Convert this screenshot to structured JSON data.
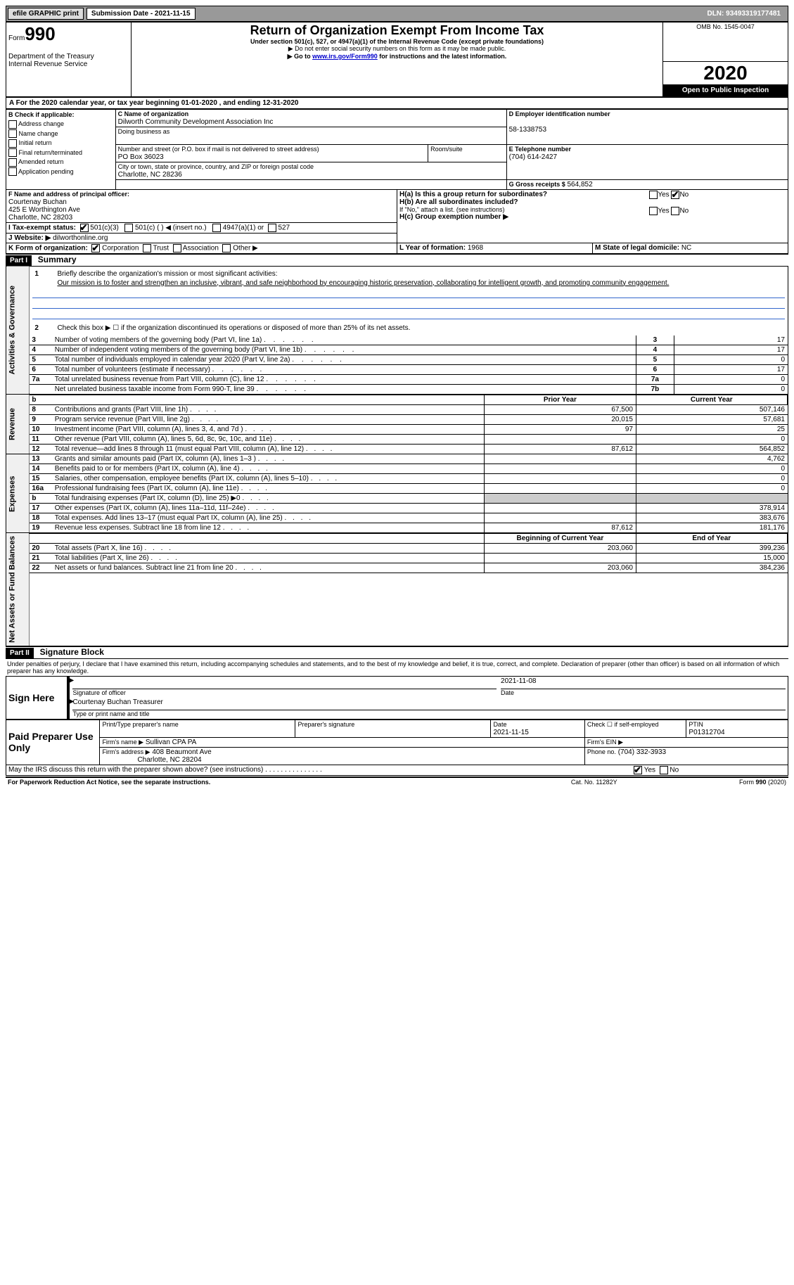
{
  "topbar": {
    "efile": "efile GRAPHIC print",
    "submission_label": "Submission Date - 2021-11-15",
    "dln": "DLN: 93493319177481"
  },
  "header": {
    "form_label": "Form",
    "form_num": "990",
    "dept": "Department of the Treasury\nInternal Revenue Service",
    "title": "Return of Organization Exempt From Income Tax",
    "subtitle": "Under section 501(c), 527, or 4947(a)(1) of the Internal Revenue Code (except private foundations)",
    "note1": "▶ Do not enter social security numbers on this form as it may be made public.",
    "note2_pre": "▶ Go to ",
    "note2_link": "www.irs.gov/Form990",
    "note2_post": " for instructions and the latest information.",
    "omb": "OMB No. 1545-0047",
    "year": "2020",
    "open": "Open to Public Inspection"
  },
  "line_a": "A For the 2020 calendar year, or tax year beginning 01-01-2020    , and ending 12-31-2020",
  "box_b": {
    "label": "B Check if applicable:",
    "items": [
      "Address change",
      "Name change",
      "Initial return",
      "Final return/terminated",
      "Amended return",
      "Application pending"
    ]
  },
  "box_c": {
    "label": "C Name of organization",
    "name": "Dilworth Community Development Association Inc",
    "dba_label": "Doing business as",
    "addr_label": "Number and street (or P.O. box if mail is not delivered to street address)",
    "room_label": "Room/suite",
    "addr": "PO Box 36023",
    "city_label": "City or town, state or province, country, and ZIP or foreign postal code",
    "city": "Charlotte, NC   28236"
  },
  "box_d": {
    "label": "D Employer identification number",
    "value": "58-1338753"
  },
  "box_e": {
    "label": "E Telephone number",
    "value": "(704) 614-2427"
  },
  "box_g": {
    "label": "G Gross receipts $",
    "value": "564,852"
  },
  "box_f": {
    "label": "F  Name and address of principal officer:",
    "name": "Courtenay Buchan",
    "addr1": "425 E Worthington Ave",
    "addr2": "Charlotte, NC  28203"
  },
  "box_h": {
    "ha_label": "H(a)  Is this a group return for subordinates?",
    "hb_label": "H(b)  Are all subordinates included?",
    "hb_note": "If \"No,\" attach a list. (see instructions)",
    "hc_label": "H(c)  Group exemption number ▶",
    "yes": "Yes",
    "no": "No"
  },
  "box_i": {
    "label": "I  Tax-exempt status:",
    "opt1": "501(c)(3)",
    "opt2": "501(c) (  ) ◀ (insert no.)",
    "opt3": "4947(a)(1) or",
    "opt4": "527"
  },
  "box_j": {
    "label": "J  Website: ▶",
    "value": "dilworthonline.org"
  },
  "box_k": {
    "label": "K Form of organization:",
    "opts": [
      "Corporation",
      "Trust",
      "Association",
      "Other ▶"
    ]
  },
  "box_l": {
    "label": "L Year of formation:",
    "value": "1968"
  },
  "box_m": {
    "label": "M State of legal domicile:",
    "value": "NC"
  },
  "part1": {
    "hdr": "Part I",
    "title": "Summary",
    "q1_label": "1",
    "q1_text": "Briefly describe the organization's mission or most significant activities:",
    "q1_mission": "Our mission is to foster and strengthen an inclusive, vibrant, and safe neighborhood by encouraging historic preservation, collaborating for intelligent growth, and promoting community engagement.",
    "q2_label": "2",
    "q2_text": "Check this box ▶ ☐  if the organization discontinued its operations or disposed of more than 25% of its net assets.",
    "sections": {
      "gov": "Activities & Governance",
      "rev": "Revenue",
      "exp": "Expenses",
      "net": "Net Assets or Fund Balances"
    },
    "col_prior": "Prior Year",
    "col_current": "Current Year",
    "col_begin": "Beginning of Current Year",
    "col_end": "End of Year",
    "lines_gov": [
      {
        "n": "3",
        "t": "Number of voting members of the governing body (Part VI, line 1a)",
        "box": "3",
        "v": "17"
      },
      {
        "n": "4",
        "t": "Number of independent voting members of the governing body (Part VI, line 1b)",
        "box": "4",
        "v": "17"
      },
      {
        "n": "5",
        "t": "Total number of individuals employed in calendar year 2020 (Part V, line 2a)",
        "box": "5",
        "v": "0"
      },
      {
        "n": "6",
        "t": "Total number of volunteers (estimate if necessary)",
        "box": "6",
        "v": "17"
      },
      {
        "n": "7a",
        "t": "Total unrelated business revenue from Part VIII, column (C), line 12",
        "box": "7a",
        "v": "0"
      },
      {
        "n": "",
        "t": "Net unrelated business taxable income from Form 990-T, line 39",
        "box": "7b",
        "v": "0"
      }
    ],
    "lines_rev": [
      {
        "n": "8",
        "t": "Contributions and grants (Part VIII, line 1h)",
        "p": "67,500",
        "c": "507,146"
      },
      {
        "n": "9",
        "t": "Program service revenue (Part VIII, line 2g)",
        "p": "20,015",
        "c": "57,681"
      },
      {
        "n": "10",
        "t": "Investment income (Part VIII, column (A), lines 3, 4, and 7d )",
        "p": "97",
        "c": "25"
      },
      {
        "n": "11",
        "t": "Other revenue (Part VIII, column (A), lines 5, 6d, 8c, 9c, 10c, and 11e)",
        "p": "",
        "c": "0"
      },
      {
        "n": "12",
        "t": "Total revenue—add lines 8 through 11 (must equal Part VIII, column (A), line 12)",
        "p": "87,612",
        "c": "564,852"
      }
    ],
    "lines_exp": [
      {
        "n": "13",
        "t": "Grants and similar amounts paid (Part IX, column (A), lines 1–3 )",
        "p": "",
        "c": "4,762"
      },
      {
        "n": "14",
        "t": "Benefits paid to or for members (Part IX, column (A), line 4)",
        "p": "",
        "c": "0"
      },
      {
        "n": "15",
        "t": "Salaries, other compensation, employee benefits (Part IX, column (A), lines 5–10)",
        "p": "",
        "c": "0"
      },
      {
        "n": "16a",
        "t": "Professional fundraising fees (Part IX, column (A), line 11e)",
        "p": "",
        "c": "0"
      },
      {
        "n": "b",
        "t": "Total fundraising expenses (Part IX, column (D), line 25) ▶0",
        "p": "grey",
        "c": "grey"
      },
      {
        "n": "17",
        "t": "Other expenses (Part IX, column (A), lines 11a–11d, 11f–24e)",
        "p": "",
        "c": "378,914"
      },
      {
        "n": "18",
        "t": "Total expenses. Add lines 13–17 (must equal Part IX, column (A), line 25)",
        "p": "",
        "c": "383,676"
      },
      {
        "n": "19",
        "t": "Revenue less expenses. Subtract line 18 from line 12",
        "p": "87,612",
        "c": "181,176"
      }
    ],
    "lines_net": [
      {
        "n": "20",
        "t": "Total assets (Part X, line 16)",
        "p": "203,060",
        "c": "399,236"
      },
      {
        "n": "21",
        "t": "Total liabilities (Part X, line 26)",
        "p": "",
        "c": "15,000"
      },
      {
        "n": "22",
        "t": "Net assets or fund balances. Subtract line 21 from line 20",
        "p": "203,060",
        "c": "384,236"
      }
    ]
  },
  "part2": {
    "hdr": "Part II",
    "title": "Signature Block",
    "decl": "Under penalties of perjury, I declare that I have examined this return, including accompanying schedules and statements, and to the best of my knowledge and belief, it is true, correct, and complete. Declaration of preparer (other than officer) is based on all information of which preparer has any knowledge.",
    "sign_here": "Sign Here",
    "sig_officer": "Signature of officer",
    "sig_date": "2021-11-08",
    "date_label": "Date",
    "officer_name": "Courtenay Buchan  Treasurer",
    "type_name": "Type or print name and title",
    "paid": "Paid Preparer Use Only",
    "prep_name_label": "Print/Type preparer's name",
    "prep_sig_label": "Preparer's signature",
    "prep_date_label": "Date",
    "prep_date": "2021-11-15",
    "check_self": "Check ☐ if self-employed",
    "ptin_label": "PTIN",
    "ptin": "P01312704",
    "firm_name_label": "Firm's name    ▶",
    "firm_name": "Sullivan CPA PA",
    "firm_ein_label": "Firm's EIN ▶",
    "firm_addr_label": "Firm's address ▶",
    "firm_addr": "408 Beaumont Ave",
    "firm_city": "Charlotte, NC  28204",
    "phone_label": "Phone no.",
    "phone": "(704) 332-3933",
    "discuss": "May the IRS discuss this return with the preparer shown above? (see instructions)",
    "yes": "Yes",
    "no": "No"
  },
  "footer": {
    "pra": "For Paperwork Reduction Act Notice, see the separate instructions.",
    "cat": "Cat. No. 11282Y",
    "form": "Form 990 (2020)"
  }
}
